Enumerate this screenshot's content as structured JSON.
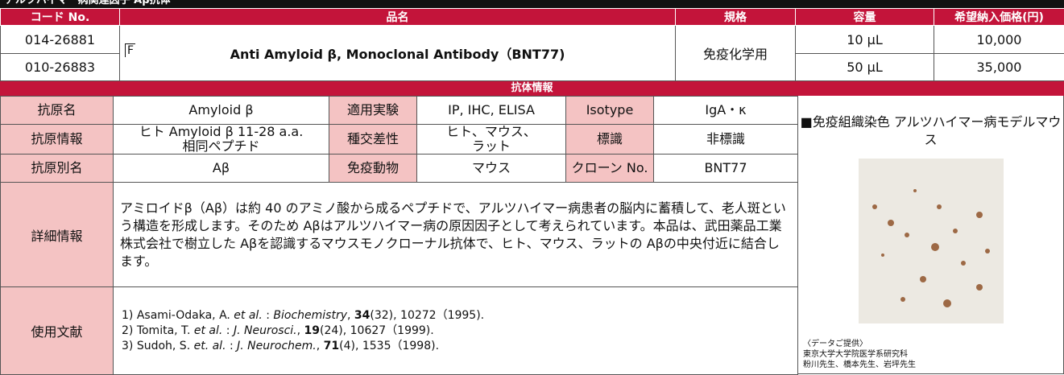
{
  "header": {
    "title": "アルツハイマー病関連因子 Aβ抗体"
  },
  "product_table": {
    "columns": [
      "コード No.",
      "品名",
      "規格",
      "容量",
      "希望納入価格(円)"
    ],
    "name": "Anti Amyloid β, Monoclonal Antibody（BNT77)",
    "icon": "F",
    "usage": "免疫化学用",
    "rows": [
      {
        "code": "014-26881",
        "volume": "10 μL",
        "price": "10,000"
      },
      {
        "code": "010-26883",
        "volume": "50 μL",
        "price": "35,000"
      }
    ]
  },
  "info": {
    "title": "抗体情報",
    "rows": [
      [
        "抗原名",
        "Amyloid β",
        "適用実験",
        "IP, IHC, ELISA",
        "Isotype",
        "IgA・κ"
      ],
      [
        "抗原情報",
        "ヒト Amyloid β 11-28 a.a.\n相同ペプチド",
        "種交差性",
        "ヒト、マウス、\nラット",
        "標識",
        "非標識"
      ],
      [
        "抗原別名",
        "Aβ",
        "免疫動物",
        "マウス",
        "クローン No.",
        "BNT77"
      ]
    ],
    "detail_label": "詳細情報",
    "detail": "アミロイドβ（Aβ）は約 40 のアミノ酸から成るペプチドで、アルツハイマー病患者の脳内に蓄積して、老人斑という構造を形成します。そのため Aβはアルツハイマー病の原因因子として考えられています。本品は、武田薬品工業株式会社で樹立した Aβを認識するマウスモノクローナル抗体で、ヒト、マウス、ラットの Aβの中央付近に結合します。",
    "refs_label": "使用文献",
    "refs": [
      {
        "lead": "1) Asami-Odaka, A. ",
        "etal": "et al.",
        "sep": " : ",
        "journal": "Biochemistry",
        "comma": ", ",
        "vol": "34",
        "rest": "(32), 10272（1995)."
      },
      {
        "lead": "2) Tomita, T. ",
        "etal": "et al.",
        "sep": " : ",
        "journal": "J. Neurosci.",
        "comma": ", ",
        "vol": "19",
        "rest": "(24), 10627（1999)."
      },
      {
        "lead": "3) Sudoh, S. ",
        "etal": "et. al.",
        "sep": " : ",
        "journal": "J. Neurochem.",
        "comma": ", ",
        "vol": "71",
        "rest": "(4), 1535（1998)."
      }
    ]
  },
  "figure": {
    "caption": "■免疫組織染色\nアルツハイマー病モデルマウス",
    "credit": "〈データご提供〉\n東京大学大学院医学系研究科\n粉川先生、橋本先生、岩坪先生"
  }
}
